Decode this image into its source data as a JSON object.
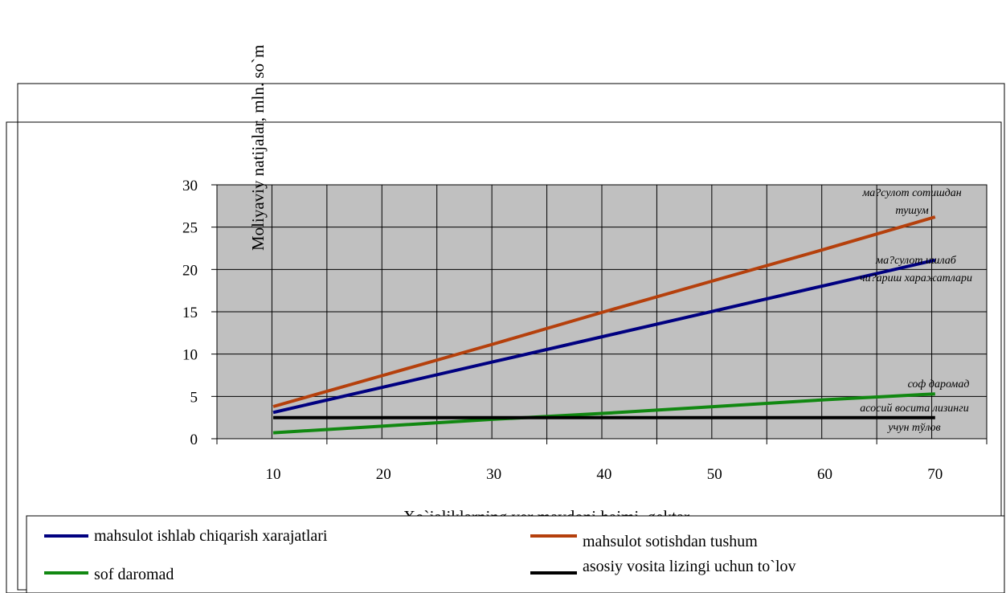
{
  "chart_data": {
    "type": "line",
    "ylabel": "Moliyaviy natijalar, mln. so`m",
    "xlabel": "Xo`jaliklarning yer maydoni hajmi, gektar",
    "x": [
      10,
      20,
      30,
      40,
      50,
      60,
      70
    ],
    "ylim": [
      0,
      30
    ],
    "yticks": [
      0,
      5,
      10,
      15,
      20,
      25,
      30
    ],
    "grid": true,
    "plot_background": "#c0c0c0",
    "legend_position": "bottom",
    "series": [
      {
        "name": "mahsulot ishlab chiqarish xarajatlari",
        "color": "#000080",
        "values": [
          3.1,
          6.1,
          9.1,
          12.1,
          15.1,
          18.1,
          21.1
        ]
      },
      {
        "name": "mahsulot sotishdan tushum",
        "color": "#b5400c",
        "values": [
          3.8,
          7.5,
          11.2,
          15.0,
          18.7,
          22.4,
          26.2
        ]
      },
      {
        "name": "sof daromad",
        "color": "#118811",
        "values": [
          0.7,
          1.5,
          2.3,
          3.0,
          3.8,
          4.6,
          5.3
        ]
      },
      {
        "name": "asosiy vosita lizingi uchun to`lov",
        "color": "#000000",
        "values": [
          2.5,
          2.5,
          2.5,
          2.5,
          2.5,
          2.5,
          2.5
        ]
      }
    ],
    "annotations": [
      {
        "lines": [
          "ма?сулот сотишдан",
          "тушум"
        ]
      },
      {
        "lines": [
          "ма?сулот ишлаб",
          "чи?ариш харажатлари"
        ]
      },
      {
        "lines": [
          "соф даромад"
        ]
      },
      {
        "lines": [
          "асосий восита лизинги",
          "учун тўлов"
        ]
      }
    ]
  }
}
